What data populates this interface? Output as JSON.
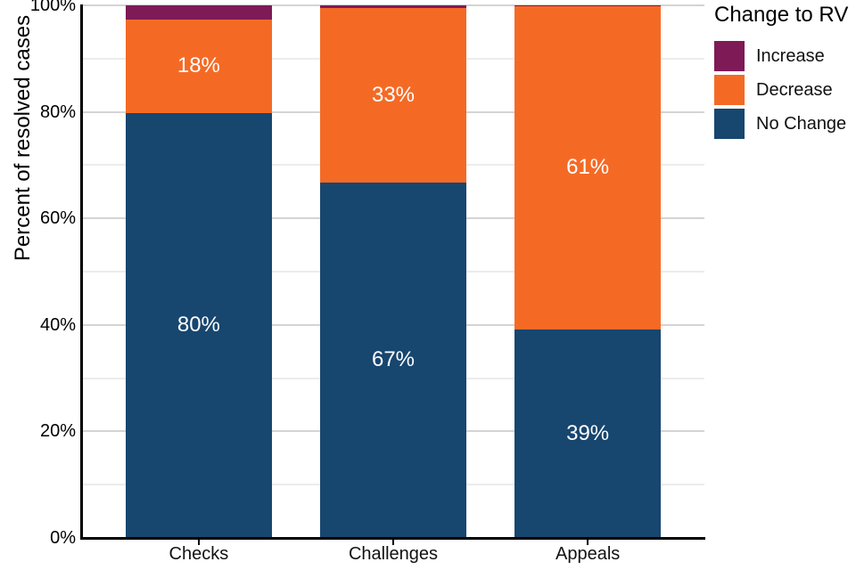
{
  "chart_data": {
    "type": "bar",
    "variant": "stacked-percent",
    "title": "",
    "legend_title": "Change to RV",
    "ylabel": "Percent of resolved cases",
    "xlabel": "",
    "categories": [
      "Checks",
      "Challenges",
      "Appeals"
    ],
    "series": [
      {
        "name": "No Change",
        "color": "#17466F",
        "values": [
          79.8,
          66.8,
          39.2
        ],
        "labels": [
          "80%",
          "67%",
          "39%"
        ]
      },
      {
        "name": "Decrease",
        "color": "#F46A25",
        "values": [
          17.6,
          32.7,
          60.6
        ],
        "labels": [
          "18%",
          "33%",
          "61%"
        ]
      },
      {
        "name": "Increase",
        "color": "#7E1A56",
        "values": [
          2.6,
          0.5,
          0.2
        ],
        "labels": [
          "",
          "",
          ""
        ]
      }
    ],
    "stack_order_bottom_to_top": [
      "No Change",
      "Decrease",
      "Increase"
    ],
    "legend": [
      {
        "label": "Increase",
        "color": "#7E1A56"
      },
      {
        "label": "Decrease",
        "color": "#F46A25"
      },
      {
        "label": "No Change",
        "color": "#17466F"
      }
    ],
    "legend_position": "right",
    "ylim": [
      0,
      100
    ],
    "y_ticks": [
      {
        "value": 0,
        "label": "0%"
      },
      {
        "value": 20,
        "label": "20%"
      },
      {
        "value": 40,
        "label": "40%"
      },
      {
        "value": 60,
        "label": "60%"
      },
      {
        "value": 80,
        "label": "80%"
      },
      {
        "value": 100,
        "label": "100%"
      }
    ],
    "y_minor_ticks": [
      10,
      30,
      50,
      70,
      90
    ],
    "grid": "horizontal",
    "value_label_color": "#FFFFFF",
    "axis_color": "#000000",
    "major_grid_color": "#D4D4D4",
    "minor_grid_color": "#ECECEC"
  }
}
